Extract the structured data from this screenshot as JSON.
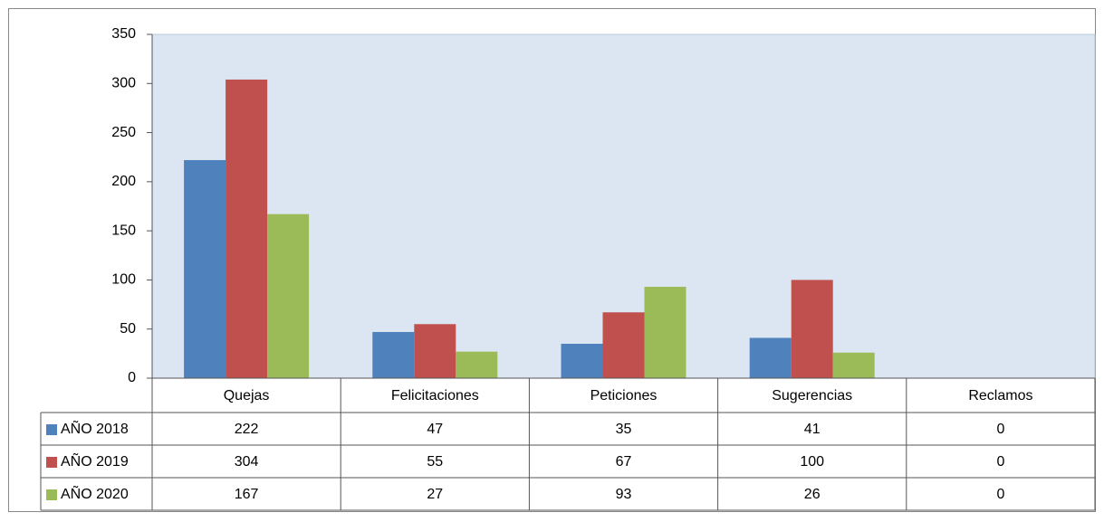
{
  "chart_data": {
    "type": "bar",
    "categories": [
      "Quejas",
      "Felicitaciones",
      "Peticiones",
      "Sugerencias",
      "Reclamos"
    ],
    "series": [
      {
        "name": "AÑO 2018",
        "color": "#4f81bd",
        "values": [
          222,
          47,
          35,
          41,
          0
        ]
      },
      {
        "name": "AÑO 2019",
        "color": "#c0504d",
        "values": [
          304,
          55,
          67,
          100,
          0
        ]
      },
      {
        "name": "AÑO 2020",
        "color": "#9bbb59",
        "values": [
          167,
          27,
          93,
          26,
          0
        ]
      }
    ],
    "ylim": [
      0,
      350
    ],
    "yticks": [
      0,
      50,
      100,
      150,
      200,
      250,
      300,
      350
    ],
    "grid": false
  }
}
